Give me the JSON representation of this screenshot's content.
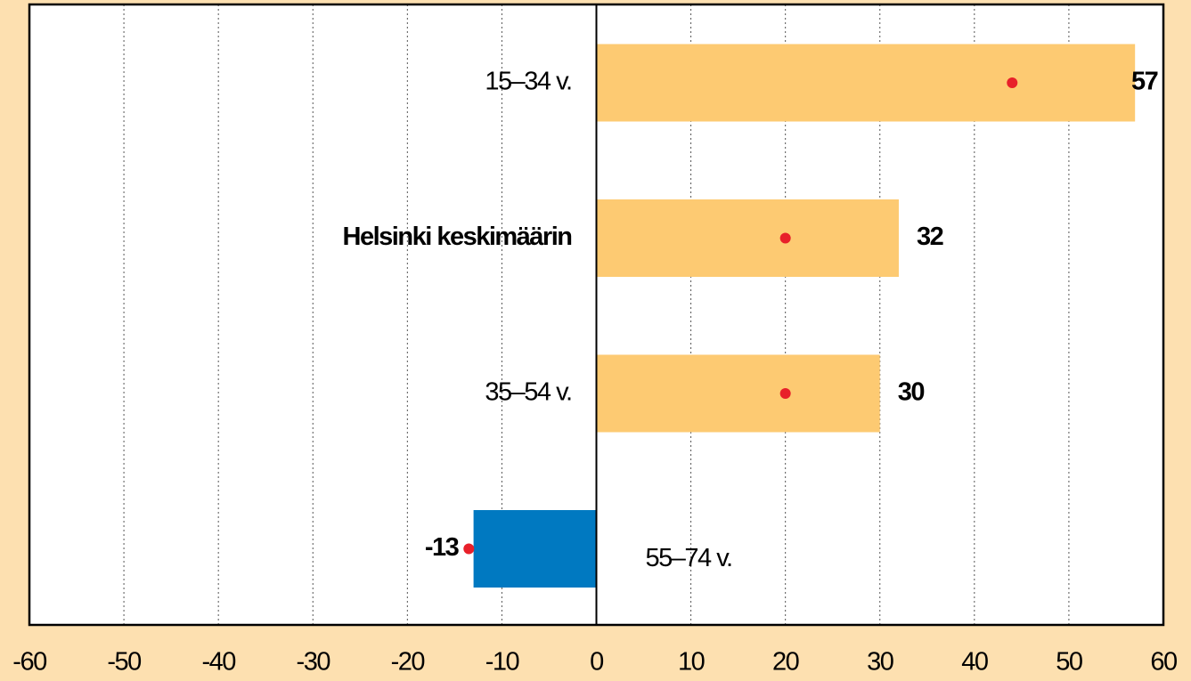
{
  "chart_data": {
    "type": "hbar",
    "categories": [
      "15–34 v.",
      "Helsinki keskimäärin",
      "35–54 v.",
      "55–74 v."
    ],
    "category_bold": [
      false,
      true,
      false,
      false
    ],
    "values": [
      57,
      32,
      30,
      -13
    ],
    "color": "#fdca72",
    "negative_color": "#0079c1",
    "markers": {
      "color": "#e8202a",
      "values": [
        44,
        20,
        20,
        -13.5
      ]
    },
    "xlim": [
      -60,
      60
    ],
    "xticks": [
      -60,
      -50,
      -40,
      -30,
      -20,
      -10,
      0,
      10,
      20,
      30,
      40,
      50,
      60
    ],
    "grid": true
  }
}
